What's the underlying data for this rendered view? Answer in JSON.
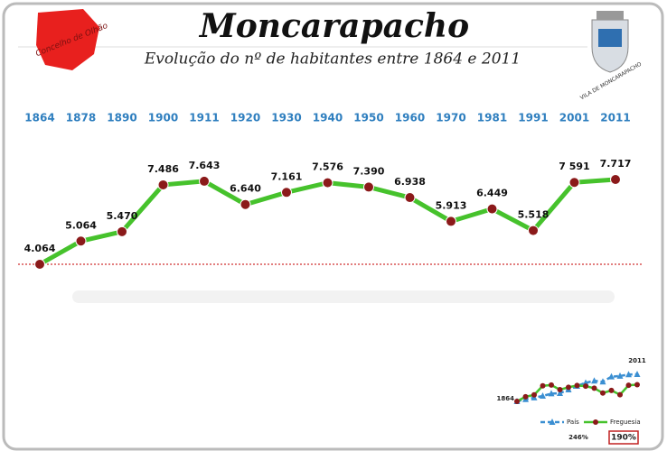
{
  "chart_data": [
    {
      "type": "line",
      "title": "Moncarapacho",
      "subtitle": "Evolução do nº de habitantes entre 1864 e 2011",
      "categories": [
        "1864",
        "1878",
        "1890",
        "1900",
        "1911",
        "1920",
        "1930",
        "1940",
        "1950",
        "1960",
        "1970",
        "1981",
        "1991",
        "2001",
        "2011"
      ],
      "values": [
        4064,
        5064,
        5470,
        7486,
        7643,
        6640,
        7161,
        7576,
        7390,
        6938,
        5913,
        6449,
        5518,
        7591,
        7717
      ],
      "value_labels": [
        "4.064",
        "5.064",
        "5.470",
        "7.486",
        "7.643",
        "6.640",
        "7.161",
        "7.576",
        "7.390",
        "6.938",
        "5.913",
        "6.449",
        "5.518",
        "7 591",
        "7.717"
      ],
      "line_color": "#46c22c",
      "marker_color": "#8b1a1a",
      "category_color": "#2f7fbf",
      "reference_line_color": "#d03030"
    },
    {
      "type": "line",
      "categories": [
        "1864",
        null,
        null,
        null,
        null,
        null,
        null,
        null,
        null,
        null,
        null,
        null,
        null,
        null,
        "2011"
      ],
      "series": [
        {
          "name": "País",
          "color": "#3b8fd2",
          "marker": "triangle",
          "dash": true,
          "values": [
            100,
            111,
            120,
            129,
            142,
            144,
            163,
            183,
            200,
            211,
            206,
            233,
            237,
            245,
            246
          ],
          "value_labels": [
            null,
            null,
            null,
            null,
            null,
            null,
            null,
            null,
            null,
            null,
            null,
            null,
            null,
            null,
            "246%"
          ]
        },
        {
          "name": "Freguesia",
          "color": "#46c22c",
          "marker": "circle",
          "marker_color": "#8b1a1a",
          "dash": false,
          "values": [
            100,
            125,
            135,
            184,
            188,
            163,
            176,
            186,
            182,
            171,
            145,
            159,
            136,
            187,
            190
          ],
          "value_labels": [
            null,
            null,
            null,
            null,
            null,
            null,
            null,
            null,
            null,
            null,
            null,
            null,
            null,
            null,
            "190%"
          ]
        }
      ]
    }
  ],
  "logos": {
    "left": "Concelho de Olhão",
    "right": "VILA DE MONCARAPACHO"
  }
}
